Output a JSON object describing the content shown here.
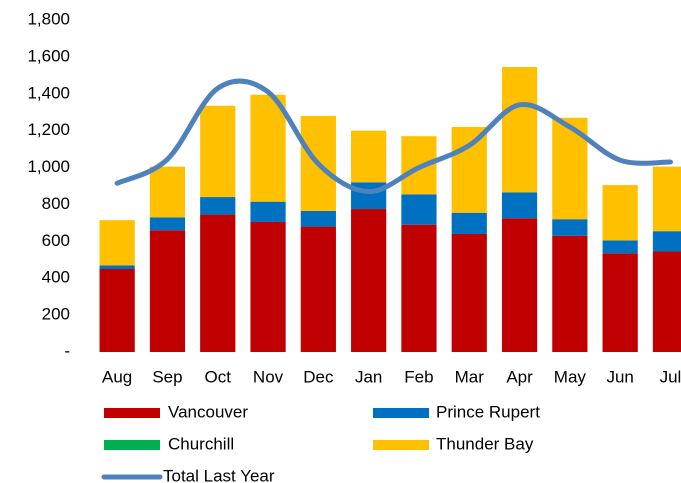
{
  "chart_data": {
    "type": "bar",
    "categories": [
      "Aug",
      "Sep",
      "Oct",
      "Nov",
      "Dec",
      "Jan",
      "Feb",
      "Mar",
      "Apr",
      "May",
      "Jun",
      "Jul"
    ],
    "series": [
      {
        "name": "Vancouver",
        "color": "#c00000",
        "values": [
          450,
          660,
          745,
          705,
          680,
          775,
          690,
          640,
          725,
          630,
          535,
          545
        ]
      },
      {
        "name": "Prince Rupert",
        "color": "#0070c0",
        "values": [
          20,
          70,
          95,
          110,
          85,
          145,
          165,
          115,
          140,
          90,
          70,
          110
        ]
      },
      {
        "name": "Churchill",
        "color": "#00b050",
        "values": [
          0,
          0,
          0,
          0,
          0,
          0,
          0,
          0,
          0,
          0,
          0,
          0
        ]
      },
      {
        "name": "Thunder Bay",
        "color": "#ffc000",
        "values": [
          245,
          275,
          495,
          580,
          515,
          280,
          315,
          465,
          680,
          550,
          300,
          350
        ]
      },
      {
        "name": "Total Last Year",
        "color": "#4f81bd",
        "type": "line",
        "values": [
          915,
          1045,
          1430,
          1410,
          1020,
          870,
          1000,
          1120,
          1340,
          1220,
          1040,
          1030
        ]
      }
    ],
    "ylim": [
      0,
      1800
    ],
    "yticks": [
      {
        "value": 0,
        "label": "-"
      },
      200,
      400,
      600,
      800,
      {
        "value": 1000,
        "label": "1,000"
      },
      {
        "value": 1200,
        "label": "1,200"
      },
      {
        "value": 1400,
        "label": "1,400"
      },
      {
        "value": 1600,
        "label": "1,600"
      },
      {
        "value": 1800,
        "label": "1,800"
      }
    ],
    "grid": false
  }
}
